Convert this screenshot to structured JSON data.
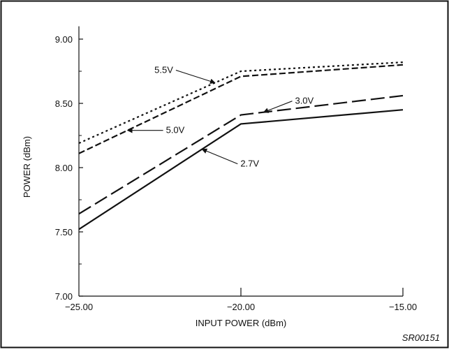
{
  "chart_data": {
    "type": "line",
    "title": "",
    "xlabel": "INPUT POWER (dBm)",
    "ylabel": "POWER (dBm)",
    "xlim": [
      -25,
      -15
    ],
    "ylim": [
      7.0,
      9.1
    ],
    "x_ticks": [
      -25,
      -20,
      -15
    ],
    "x_tick_labels": [
      "−25.00",
      "−20.00",
      "−15.00"
    ],
    "y_ticks": [
      7.0,
      7.5,
      8.0,
      8.5,
      9.0
    ],
    "y_tick_labels": [
      "7.00",
      "7.50",
      "8.00",
      "8.50",
      "9.00"
    ],
    "grid": false,
    "legend": "none",
    "series": [
      {
        "name": "5.5V",
        "style": "dotted",
        "x": [
          -25,
          -20,
          -15
        ],
        "y": [
          8.19,
          8.75,
          8.82
        ]
      },
      {
        "name": "5.0V",
        "style": "dashed",
        "x": [
          -25,
          -20,
          -15
        ],
        "y": [
          8.11,
          8.71,
          8.8
        ]
      },
      {
        "name": "3.0V",
        "style": "long-dashed",
        "x": [
          -25,
          -20,
          -15
        ],
        "y": [
          7.64,
          8.41,
          8.56
        ]
      },
      {
        "name": "2.7V",
        "style": "solid",
        "x": [
          -25,
          -20,
          -15
        ],
        "y": [
          7.52,
          8.34,
          8.45
        ]
      }
    ],
    "annotations": [
      {
        "text": "5.5V",
        "series": 0
      },
      {
        "text": "5.0V",
        "series": 1
      },
      {
        "text": "3.0V",
        "series": 2
      },
      {
        "text": "2.7V",
        "series": 3
      }
    ],
    "figure_code": "SR00151",
    "line_color": "#111111"
  }
}
